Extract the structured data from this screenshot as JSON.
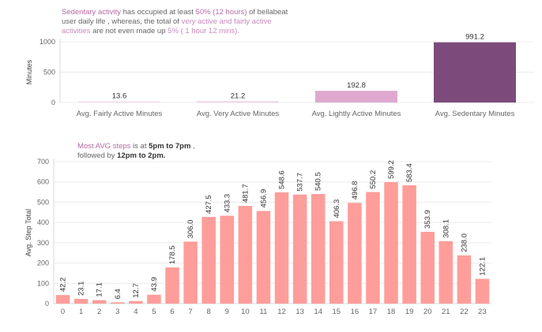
{
  "annotations": {
    "top": {
      "p1": "Sedentary activity",
      "p2": " has occupied at least ",
      "p3": "50% (12 hours)",
      "p4": "  of bellabeat user daily life , whereas, the total of ",
      "p5": "very active and fairly active activities",
      "p6": " are not even made up ",
      "p7": "5% ( 1 hour 12 mins).",
      "p8": ""
    },
    "bottom": {
      "p1": "Most AVG steps",
      "p2": " is at ",
      "p3": "5pm to 7pm",
      "p4": " ,",
      "p5": "followed by ",
      "p6": "12pm to 2pm."
    }
  },
  "chart_data": [
    {
      "type": "bar",
      "title": "",
      "xlabel": "",
      "ylabel": "Minutes",
      "ylim": [
        0,
        1000
      ],
      "yticks": [
        "0",
        "500",
        "1000"
      ],
      "grid": true,
      "categories": [
        "Avg. Fairly Active Minutes",
        "Avg. Very Active Minutes",
        "Avg. Lightly Active Minutes",
        "Avg. Sedentary Minutes"
      ],
      "values": [
        13.6,
        21.2,
        192.8,
        991.2
      ],
      "labels": [
        "13.6",
        "21.2",
        "192.8",
        "991.2"
      ],
      "colors": [
        "#f2dbec",
        "#ecd0e6",
        "#dfa9cf",
        "#7c4b7b"
      ]
    },
    {
      "type": "bar",
      "title": "",
      "xlabel": "",
      "ylabel": "Avg. Step Total",
      "ylim": [
        0,
        700
      ],
      "yticks": [
        "0",
        "100",
        "200",
        "300",
        "400",
        "500",
        "600",
        "700"
      ],
      "grid": true,
      "categories": [
        "0",
        "1",
        "2",
        "3",
        "4",
        "5",
        "6",
        "7",
        "8",
        "9",
        "10",
        "11",
        "12",
        "13",
        "14",
        "15",
        "16",
        "17",
        "18",
        "19",
        "20",
        "21",
        "22",
        "23"
      ],
      "values": [
        42.2,
        23.1,
        17.1,
        6.4,
        12.7,
        43.9,
        178.5,
        306.0,
        427.5,
        433.3,
        481.7,
        456.9,
        548.6,
        537.7,
        540.5,
        406.3,
        496.8,
        550.2,
        599.2,
        583.4,
        353.9,
        308.1,
        238.0,
        122.1
      ],
      "labels": [
        "42.2",
        "23.1",
        "17.1",
        "6.4",
        "12.7",
        "43.9",
        "178.5",
        "306.0",
        "427.5",
        "433.3",
        "481.7",
        "456.9",
        "548.6",
        "537.7",
        "540.5",
        "406.3",
        "496.8",
        "550.2",
        "599.2",
        "583.4",
        "353.9",
        "308.1",
        "238.0",
        "122.1"
      ],
      "color": "#ff9d9a"
    }
  ]
}
